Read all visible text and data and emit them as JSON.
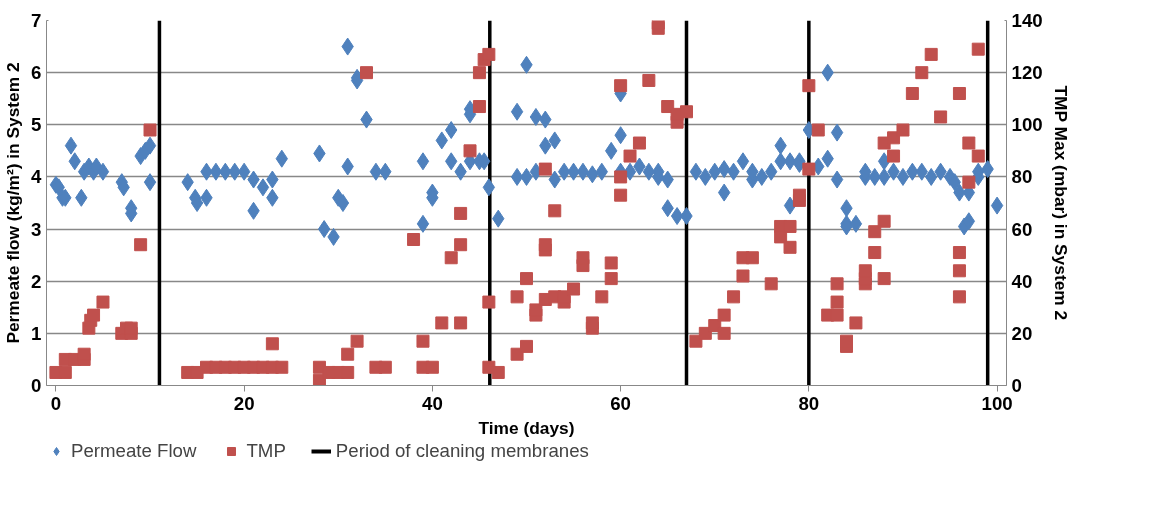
{
  "chart_data": {
    "type": "scatter",
    "xlabel": "Time (days)",
    "ylabel": "Permeate flow (kg/m²) in System 2",
    "y2label": "TMP Max (mbar) in System 2",
    "xlim": [
      -1,
      101
    ],
    "xticks": [
      0,
      20,
      40,
      60,
      80,
      100
    ],
    "ylim": [
      0,
      7
    ],
    "yticks": [
      0,
      1,
      2,
      3,
      4,
      5,
      6,
      7
    ],
    "y2lim": [
      0,
      140
    ],
    "y2ticks": [
      0,
      20,
      40,
      60,
      80,
      100,
      120,
      140
    ],
    "grid": "y",
    "legend": "bottom",
    "series": [
      {
        "name": "Permeate Flow",
        "color": "#4f81bd",
        "marker": "diamond",
        "x": [
          0,
          0.3,
          0.7,
          1,
          1.6,
          2,
          2.7,
          3,
          3.5,
          4,
          4.3,
          5,
          7,
          7.2,
          8,
          8,
          9,
          9.5,
          10,
          10,
          14,
          14.8,
          15,
          16,
          16,
          17,
          18,
          19,
          20,
          21,
          21,
          22,
          23,
          23,
          24,
          28,
          28.5,
          29.5,
          30,
          30.5,
          31,
          31,
          32,
          32,
          33,
          34,
          35,
          39,
          39,
          40,
          40,
          41,
          42,
          42,
          43,
          44,
          44,
          44,
          45,
          45.5,
          46,
          47,
          49,
          49,
          50,
          50,
          51,
          51,
          52,
          52,
          53,
          53,
          54,
          55,
          56,
          57,
          58,
          59,
          60,
          60,
          60,
          61,
          62,
          63,
          64,
          64,
          65,
          65,
          66,
          67,
          68,
          69,
          70,
          71,
          71,
          72,
          73,
          74,
          74,
          75,
          76,
          77,
          77,
          78,
          78,
          79,
          79,
          80,
          81,
          82,
          82,
          83,
          83,
          84,
          84,
          84,
          85,
          86,
          86,
          87,
          88,
          88,
          89,
          90,
          91,
          92,
          93,
          94,
          95,
          95.5,
          96,
          96.5,
          97,
          97,
          98,
          98,
          99,
          100
        ],
        "values": [
          3.85,
          3.8,
          3.6,
          3.6,
          4.6,
          4.3,
          3.6,
          4.1,
          4.2,
          4.1,
          4.2,
          4.1,
          3.9,
          3.8,
          3.3,
          3.4,
          4.4,
          4.5,
          4.6,
          3.9,
          3.9,
          3.6,
          3.5,
          3.6,
          4.1,
          4.1,
          4.1,
          4.1,
          4.1,
          3.95,
          3.35,
          3.8,
          3.6,
          3.95,
          4.35,
          4.45,
          3.0,
          2.85,
          3.6,
          3.5,
          6.5,
          4.2,
          5.85,
          5.9,
          5.1,
          4.1,
          4.1,
          4.3,
          3.1,
          3.7,
          3.6,
          4.7,
          4.9,
          4.3,
          4.1,
          5.3,
          5.2,
          4.3,
          4.3,
          4.3,
          3.8,
          3.2,
          5.25,
          4.0,
          6.15,
          4.0,
          5.15,
          4.1,
          5.1,
          4.6,
          4.7,
          3.95,
          4.1,
          4.1,
          4.1,
          4.05,
          4.1,
          4.5,
          5.6,
          4.8,
          4.1,
          4.1,
          4.2,
          4.1,
          4.1,
          4.0,
          3.95,
          3.4,
          3.25,
          3.25,
          4.1,
          4.0,
          4.1,
          4.15,
          3.7,
          4.1,
          4.3,
          3.95,
          4.1,
          4.0,
          4.1,
          4.6,
          4.3,
          3.45,
          4.3,
          4.25,
          4.3,
          4.9,
          4.2,
          6.0,
          4.35,
          4.85,
          3.95,
          3.4,
          3.1,
          3.05,
          3.1,
          4.0,
          4.1,
          4.0,
          4.3,
          4.0,
          4.1,
          4.0,
          4.1,
          4.1,
          4.0,
          4.1,
          4.0,
          3.9,
          3.7,
          3.05,
          3.15,
          3.7,
          4.0,
          4.1,
          4.15,
          3.45
        ]
      },
      {
        "name": "TMP",
        "color": "#c0504d",
        "marker": "square",
        "axis": "y2",
        "x": [
          0,
          1,
          1,
          2,
          3,
          3,
          3.5,
          3.7,
          4,
          5,
          7,
          7.5,
          8,
          8,
          9,
          10,
          14,
          15,
          16,
          17,
          18,
          19,
          20,
          21,
          22,
          23,
          23,
          24,
          28,
          28,
          29,
          30,
          31,
          31,
          32,
          33,
          34,
          35,
          38,
          39,
          39,
          40,
          41,
          42,
          43,
          43,
          43,
          44,
          45,
          45,
          45.5,
          46,
          46,
          46,
          47,
          49,
          49,
          50,
          50,
          51,
          51,
          52,
          52,
          52,
          52,
          53,
          53,
          54,
          54,
          55,
          56,
          56,
          57,
          57,
          58,
          59,
          59,
          60,
          60,
          60,
          61,
          62,
          63,
          64,
          64,
          65,
          66,
          66,
          67,
          68,
          69,
          70,
          71,
          71,
          72,
          73,
          73,
          74,
          76,
          77,
          77,
          78,
          78,
          79,
          79,
          80,
          80,
          81,
          82,
          83,
          83,
          83,
          84,
          84,
          85,
          86,
          86,
          86,
          87,
          87,
          88,
          88,
          88,
          89,
          89,
          90,
          91,
          92,
          93,
          94,
          96,
          96,
          96,
          96,
          97,
          97,
          98,
          98
        ],
        "values": [
          5,
          5,
          10,
          10,
          10,
          12,
          22,
          25,
          27,
          32,
          20,
          22,
          20,
          22,
          54,
          98,
          5,
          5,
          7,
          7,
          7,
          7,
          7,
          7,
          7,
          7,
          16,
          7,
          7,
          2,
          5,
          5,
          5,
          12,
          17,
          120,
          7,
          7,
          56,
          17,
          7,
          7,
          24,
          49,
          54,
          66,
          24,
          90,
          107,
          120,
          125,
          127,
          32,
          7,
          5,
          34,
          12,
          15,
          41,
          27,
          29,
          52,
          54,
          83,
          33,
          34,
          67,
          32,
          34,
          37,
          46,
          49,
          22,
          24,
          34,
          47,
          41,
          115,
          80,
          73,
          88,
          93,
          117,
          137,
          139,
          107,
          101,
          104,
          105,
          17,
          20,
          23,
          27,
          20,
          34,
          49,
          42,
          49,
          39,
          61,
          57,
          61,
          53,
          71,
          73,
          115,
          83,
          98,
          27,
          39,
          32,
          27,
          15,
          17,
          24,
          39,
          41,
          44,
          51,
          59,
          93,
          41,
          63,
          95,
          88,
          98,
          112,
          120,
          127,
          103,
          112,
          44,
          34,
          51,
          78,
          93,
          88,
          129
        ]
      }
    ],
    "ref_lines": [
      {
        "axis": "x",
        "value": 11,
        "label": "Period of cleaning membranes",
        "color": "#000000"
      },
      {
        "axis": "x",
        "value": 46.1,
        "color": "#000000"
      },
      {
        "axis": "x",
        "value": 67,
        "color": "#000000"
      },
      {
        "axis": "x",
        "value": 80,
        "color": "#000000"
      },
      {
        "axis": "x",
        "value": 99,
        "color": "#000000"
      }
    ]
  }
}
